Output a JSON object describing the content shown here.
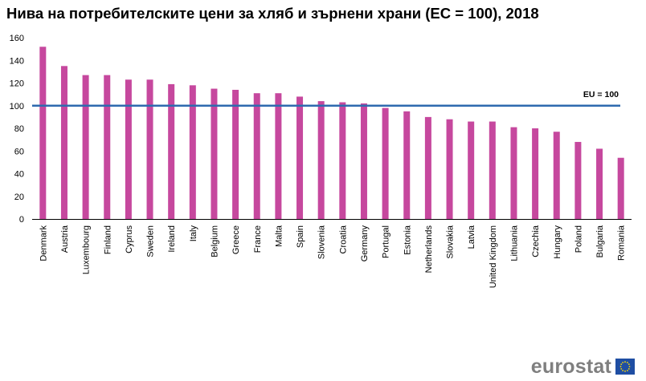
{
  "chart_data": {
    "type": "bar",
    "title": "Нива на потребителските цени за хляб и зърнени храни (ЕС = 100), 2018",
    "categories": [
      "Denmark",
      "Austria",
      "Luxembourg",
      "Finland",
      "Cyprus",
      "Sweden",
      "Ireland",
      "Italy",
      "Belgium",
      "Greece",
      "France",
      "Malta",
      "Spain",
      "Slovenia",
      "Croatia",
      "Germany",
      "Portugal",
      "Estonia",
      "Netherlands",
      "Slovakia",
      "Latvia",
      "United Kingdom",
      "Lithuania",
      "Czechia",
      "Hungary",
      "Poland",
      "Bulgaria",
      "Romania"
    ],
    "values": [
      152,
      135,
      127,
      127,
      123,
      123,
      119,
      118,
      115,
      114,
      111,
      111,
      108,
      104,
      103,
      102,
      98,
      95,
      90,
      88,
      86,
      86,
      81,
      80,
      77,
      68,
      62,
      54
    ],
    "ylim": [
      0,
      160
    ],
    "yticks": [
      0,
      20,
      40,
      60,
      80,
      100,
      120,
      140,
      160
    ],
    "xlabel": "",
    "ylabel": "",
    "grid": false,
    "bar_color": "#c6489e",
    "reference_line": {
      "value": 100,
      "label": "EU = 100",
      "color": "#2e6aaf"
    }
  },
  "branding": {
    "logo_text": "eurostat",
    "logo_icon": "eu-flag-icon"
  }
}
